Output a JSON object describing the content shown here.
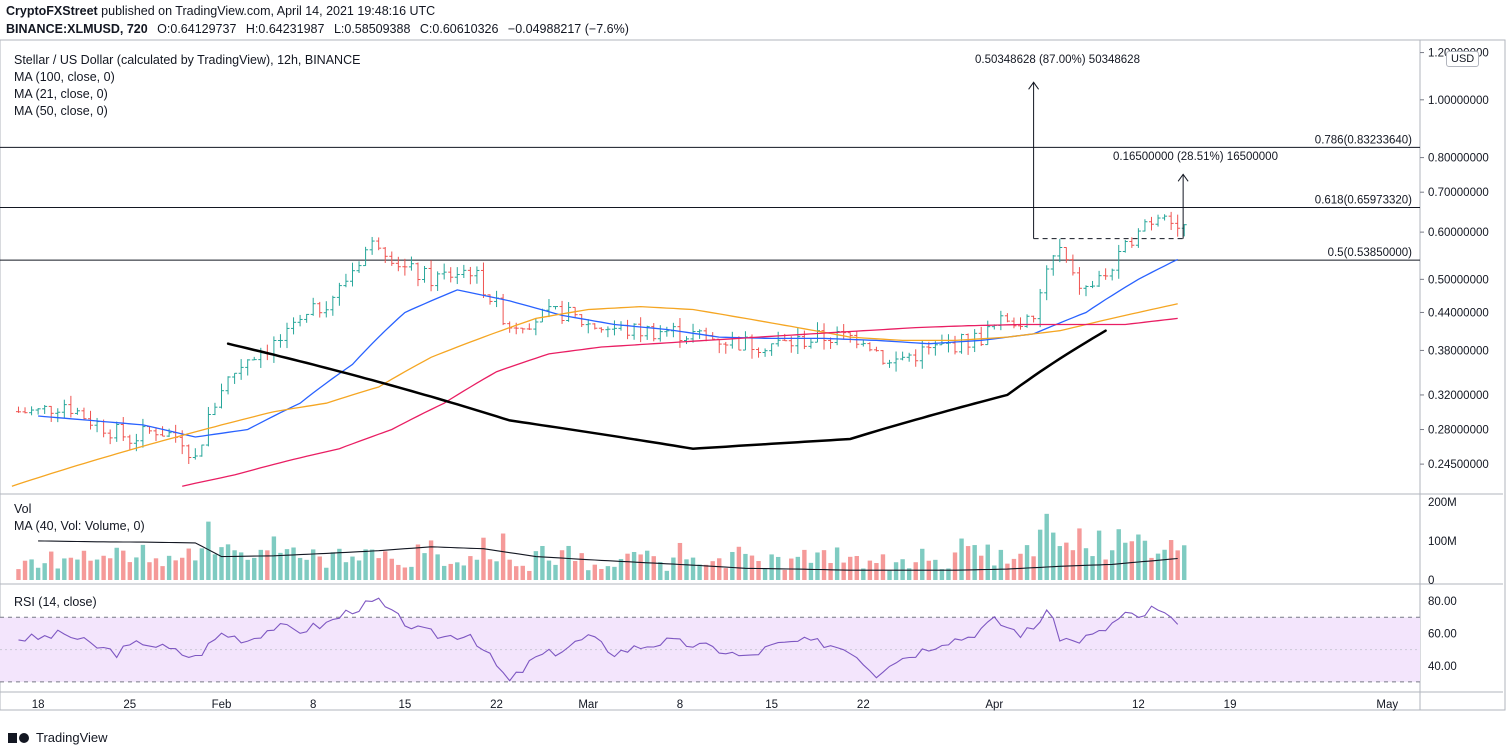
{
  "header": {
    "publisher": "CryptoFXStreet",
    "published_text": "published on TradingView.com, April 14, 2021 19:48:16 UTC",
    "symbol": "BINANCE:XLMUSD, 720",
    "ohlc": {
      "O": "O:0.64129737",
      "H": "H:0.64231987",
      "L": "L:0.58509388",
      "C": "C:0.60610326",
      "change": "−0.04988217 (−7.6%)"
    }
  },
  "legend": {
    "title": "Stellar / US Dollar (calculated by TradingView), 12h, BINANCE",
    "ma100": "MA (100, close, 0)",
    "ma21": "MA (21, close, 0)",
    "ma50": "MA (50, close, 0)",
    "vol": "Vol",
    "vol_ma": "MA (40, Vol: Volume, 0)",
    "rsi": "RSI (14, close)"
  },
  "currency_badge": "USD",
  "footer": {
    "brand": "TradingView"
  },
  "colors": {
    "up": "#26a69a",
    "down": "#ef5350",
    "ma21": "#2962ff",
    "ma50": "#f5a623",
    "ma100": "#e91e63",
    "vol_up": "#7fcbc1",
    "vol_down": "#f59a99",
    "rsi_band": "#f3e5fc",
    "rsi_line": "#7e57c2",
    "vol_ma": "#131722"
  },
  "chart_data": [
    {
      "type": "candlestick",
      "title": "Stellar / US Dollar (calculated by TradingView), 12h, BINANCE",
      "y_scale": "log",
      "y_ticks": [
        "1.20000000",
        "1.00000000",
        "0.80000000",
        "0.70000000",
        "0.60000000",
        "0.50000000",
        "0.44000000",
        "0.38000000",
        "0.32000000",
        "0.28000000",
        "0.24500000"
      ],
      "y_tick_values": [
        1.2,
        1.0,
        0.8,
        0.7,
        0.6,
        0.5,
        0.44,
        0.38,
        0.32,
        0.28,
        0.245
      ],
      "ylim": [
        0.22,
        1.25
      ],
      "x_ticks": [
        "18",
        "25",
        "Feb",
        "8",
        "15",
        "22",
        "Mar",
        "8",
        "15",
        "22",
        "Apr",
        "12",
        "19",
        "May"
      ],
      "x_tick_days": [
        0,
        7,
        14,
        21,
        28,
        35,
        42,
        49,
        56,
        63,
        73,
        84,
        91,
        103
      ],
      "xlim_days": [
        -2.3,
        105.5
      ],
      "close_series_days": [
        0,
        2,
        4,
        7,
        9,
        11,
        12,
        14,
        16,
        19,
        21,
        23,
        25,
        26,
        28,
        30,
        33,
        35,
        36,
        38,
        40,
        42,
        45,
        48,
        51,
        54,
        57,
        60,
        63,
        65,
        66,
        68,
        70,
        72,
        74,
        76,
        77,
        78,
        79,
        80,
        81,
        82,
        83,
        84,
        85,
        86,
        87
      ],
      "close_series": [
        0.3,
        0.31,
        0.29,
        0.27,
        0.28,
        0.27,
        0.25,
        0.33,
        0.37,
        0.4,
        0.44,
        0.48,
        0.56,
        0.58,
        0.52,
        0.5,
        0.52,
        0.45,
        0.42,
        0.43,
        0.44,
        0.42,
        0.41,
        0.41,
        0.4,
        0.39,
        0.39,
        0.4,
        0.4,
        0.36,
        0.37,
        0.38,
        0.39,
        0.4,
        0.43,
        0.42,
        0.52,
        0.56,
        0.5,
        0.48,
        0.5,
        0.52,
        0.56,
        0.62,
        0.63,
        0.66,
        0.61
      ],
      "moving_averages": [
        {
          "name": "MA (21, close, 0)",
          "days": [
            0,
            4,
            8,
            12,
            16,
            20,
            24,
            28,
            32,
            36,
            40,
            44,
            48,
            52,
            56,
            60,
            64,
            68,
            72,
            76,
            80,
            84,
            87
          ],
          "values": [
            0.295,
            0.29,
            0.285,
            0.272,
            0.28,
            0.31,
            0.36,
            0.44,
            0.48,
            0.46,
            0.435,
            0.42,
            0.412,
            0.4,
            0.398,
            0.398,
            0.395,
            0.39,
            0.395,
            0.405,
            0.44,
            0.5,
            0.54
          ]
        },
        {
          "name": "MA (50, close, 0)",
          "days": [
            -2,
            2,
            6,
            10,
            14,
            18,
            22,
            26,
            30,
            34,
            38,
            42,
            46,
            50,
            54,
            58,
            62,
            66,
            70,
            74,
            78,
            82,
            87
          ],
          "values": [
            0.225,
            0.24,
            0.255,
            0.27,
            0.285,
            0.3,
            0.31,
            0.33,
            0.37,
            0.4,
            0.43,
            0.445,
            0.45,
            0.445,
            0.43,
            0.415,
            0.4,
            0.395,
            0.395,
            0.4,
            0.41,
            0.43,
            0.455
          ]
        },
        {
          "name": "MA (100, close, 0)",
          "days": [
            11,
            15,
            19,
            23,
            27,
            31,
            35,
            39,
            43,
            47,
            51,
            55,
            59,
            63,
            67,
            71,
            75,
            79,
            83,
            87
          ],
          "values": [
            0.225,
            0.235,
            0.248,
            0.26,
            0.28,
            0.31,
            0.35,
            0.375,
            0.385,
            0.39,
            0.395,
            0.4,
            0.405,
            0.41,
            0.415,
            0.418,
            0.42,
            0.42,
            0.42,
            0.43
          ]
        }
      ],
      "fibonacci_levels": [
        {
          "label": "0.786(0.83233640)",
          "value": 0.8323364
        },
        {
          "label": "0.618(0.65973320)",
          "value": 0.6597332
        },
        {
          "label": "0.5(0.53850000)",
          "value": 0.5385
        }
      ],
      "neckline": {
        "value": 0.585,
        "x_days": [
          76,
          86.5
        ]
      },
      "measured_moves": [
        {
          "label": "0.50348628 (87.00%) 50348628",
          "x_day": 76,
          "from": 0.585,
          "to": 1.07
        },
        {
          "label": "0.16500000 (28.51%) 16500000",
          "x_day": 86.5,
          "from": 0.585,
          "to": 0.75
        }
      ],
      "cup_pattern": {
        "days": [
          14.5,
          36,
          50,
          62,
          74,
          81.5
        ],
        "values": [
          0.39,
          0.29,
          0.26,
          0.27,
          0.32,
          0.41
        ]
      }
    },
    {
      "type": "bar",
      "title": "Vol",
      "y_ticks": [
        "200M",
        "100M",
        "0"
      ],
      "y_tick_values": [
        200,
        100,
        0
      ],
      "unit": "M",
      "ma_name": "MA (40, Vol: Volume, 0)",
      "ma_days": [
        0,
        4,
        8,
        12,
        14,
        18,
        22,
        26,
        30,
        34,
        38,
        42,
        46,
        50,
        54,
        58,
        62,
        66,
        70,
        74,
        78,
        82,
        87
      ],
      "ma_values": [
        100,
        98,
        97,
        95,
        60,
        62,
        68,
        75,
        85,
        80,
        60,
        52,
        45,
        38,
        30,
        28,
        25,
        25,
        25,
        28,
        35,
        40,
        55
      ]
    },
    {
      "type": "line",
      "title": "RSI (14, close)",
      "y_ticks": [
        "80.00",
        "60.00",
        "40.00"
      ],
      "y_tick_values": [
        80,
        60,
        40
      ],
      "ylim": [
        25,
        90
      ],
      "band": [
        30,
        70
      ],
      "days": [
        0,
        2,
        4,
        6,
        8,
        10,
        12,
        14,
        16,
        18,
        20,
        22,
        24,
        26,
        27,
        29,
        31,
        33,
        35,
        36,
        38,
        40,
        42,
        44,
        46,
        48,
        50,
        52,
        54,
        56,
        58,
        60,
        62,
        64,
        65,
        67,
        69,
        71,
        73,
        75,
        76,
        77,
        78,
        79,
        81,
        83,
        84,
        85,
        86,
        87
      ],
      "values": [
        57,
        60,
        53,
        48,
        55,
        50,
        45,
        60,
        56,
        64,
        62,
        66,
        75,
        80,
        72,
        62,
        58,
        60,
        40,
        30,
        45,
        50,
        58,
        48,
        52,
        55,
        53,
        50,
        45,
        52,
        55,
        54,
        50,
        35,
        42,
        48,
        55,
        58,
        68,
        60,
        63,
        75,
        58,
        55,
        60,
        72,
        69,
        75,
        72,
        63
      ]
    }
  ]
}
